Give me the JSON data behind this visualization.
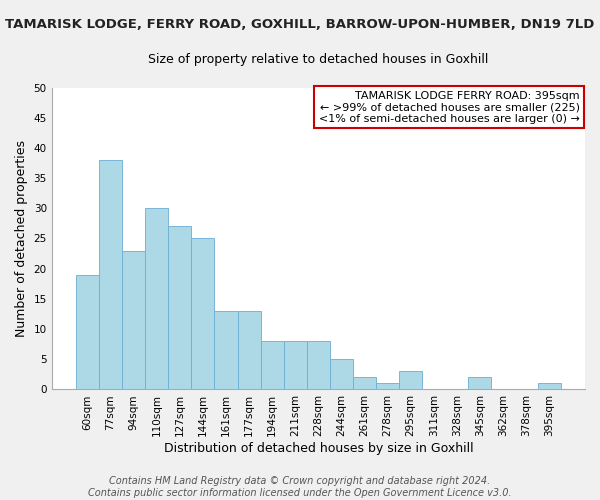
{
  "title": "TAMARISK LODGE, FERRY ROAD, GOXHILL, BARROW-UPON-HUMBER, DN19 7LD",
  "subtitle": "Size of property relative to detached houses in Goxhill",
  "xlabel": "Distribution of detached houses by size in Goxhill",
  "ylabel": "Number of detached properties",
  "bar_labels": [
    "60sqm",
    "77sqm",
    "94sqm",
    "110sqm",
    "127sqm",
    "144sqm",
    "161sqm",
    "177sqm",
    "194sqm",
    "211sqm",
    "228sqm",
    "244sqm",
    "261sqm",
    "278sqm",
    "295sqm",
    "311sqm",
    "328sqm",
    "345sqm",
    "362sqm",
    "378sqm",
    "395sqm"
  ],
  "bar_values": [
    19,
    38,
    23,
    30,
    27,
    25,
    13,
    13,
    8,
    8,
    8,
    5,
    2,
    1,
    3,
    0,
    0,
    2,
    0,
    0,
    1
  ],
  "bar_color": "#add8e6",
  "bar_edge_color": "#6baed6",
  "ylim": [
    0,
    50
  ],
  "yticks": [
    0,
    5,
    10,
    15,
    20,
    25,
    30,
    35,
    40,
    45,
    50
  ],
  "legend_title": "TAMARISK LODGE FERRY ROAD: 395sqm",
  "legend_line1": "← >99% of detached houses are smaller (225)",
  "legend_line2": "<1% of semi-detached houses are larger (0) →",
  "legend_box_facecolor": "#ffffff",
  "legend_box_edgecolor": "#cc0000",
  "footer_line1": "Contains HM Land Registry data © Crown copyright and database right 2024.",
  "footer_line2": "Contains public sector information licensed under the Open Government Licence v3.0.",
  "title_fontsize": 9.5,
  "subtitle_fontsize": 9,
  "axis_label_fontsize": 9,
  "tick_fontsize": 7.5,
  "legend_fontsize": 8,
  "footer_fontsize": 7,
  "grid_color": "#ffffff",
  "plot_bg_color": "#ffffff",
  "fig_bg_color": "#f0f0f0"
}
